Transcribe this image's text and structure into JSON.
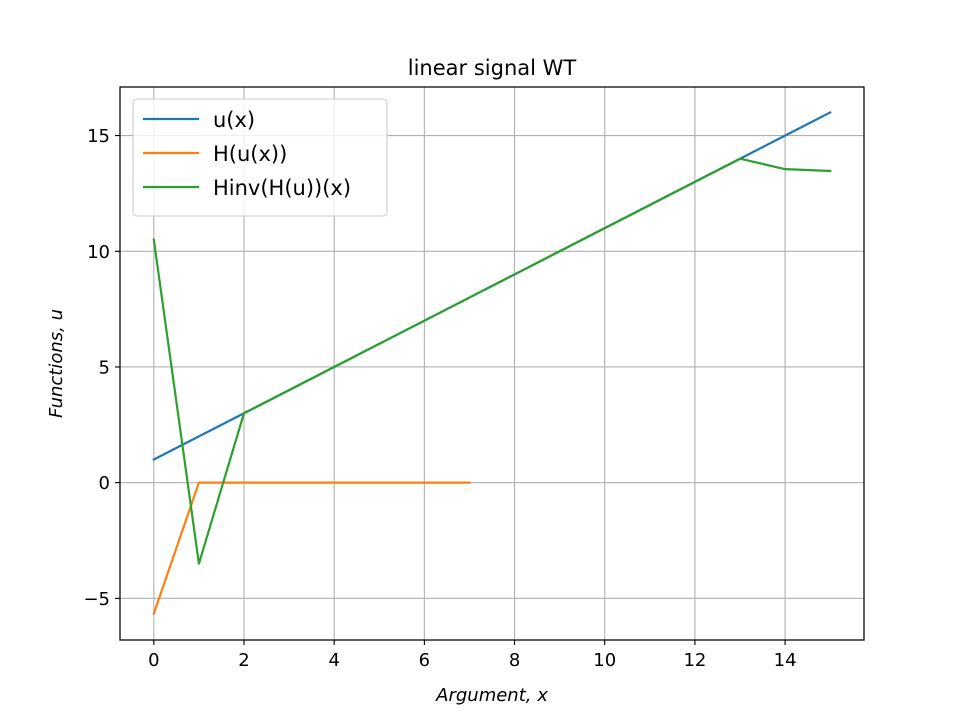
{
  "chart_data": {
    "type": "line",
    "title": "linear signal WT",
    "xlabel": "Argument, x",
    "ylabel": "Functions, u",
    "xlim": [
      -0.75,
      15.75
    ],
    "ylim": [
      -6.8,
      17.1
    ],
    "xticks": [
      0,
      2,
      4,
      6,
      8,
      10,
      12,
      14
    ],
    "yticks": [
      -5,
      0,
      5,
      10,
      15
    ],
    "xtick_labels": [
      "0",
      "2",
      "4",
      "6",
      "8",
      "10",
      "12",
      "14"
    ],
    "ytick_labels": [
      "−5",
      "0",
      "5",
      "10",
      "15"
    ],
    "grid": true,
    "legend_position": "top-left",
    "series": [
      {
        "name": "u(x)",
        "color": "#1f77b4",
        "x": [
          0,
          1,
          2,
          3,
          4,
          5,
          6,
          7,
          8,
          9,
          10,
          11,
          12,
          13,
          14,
          15
        ],
        "y": [
          1,
          2,
          3,
          4,
          5,
          6,
          7,
          8,
          9,
          10,
          11,
          12,
          13,
          14,
          15,
          16
        ]
      },
      {
        "name": "H(u(x))",
        "color": "#ff7f0e",
        "x": [
          0,
          1,
          2,
          3,
          4,
          5,
          6,
          7
        ],
        "y": [
          -5.66,
          0,
          0,
          0,
          0,
          0,
          0,
          0
        ]
      },
      {
        "name": "Hinv(H(u))(x)",
        "color": "#2ca02c",
        "x": [
          0,
          1,
          2,
          3,
          4,
          5,
          6,
          7,
          8,
          9,
          10,
          11,
          12,
          13,
          14,
          15
        ],
        "y": [
          10.5,
          -3.5,
          3,
          4,
          5,
          6,
          7,
          8,
          9,
          10,
          11,
          12,
          13,
          14,
          13.55,
          13.47
        ]
      }
    ]
  }
}
